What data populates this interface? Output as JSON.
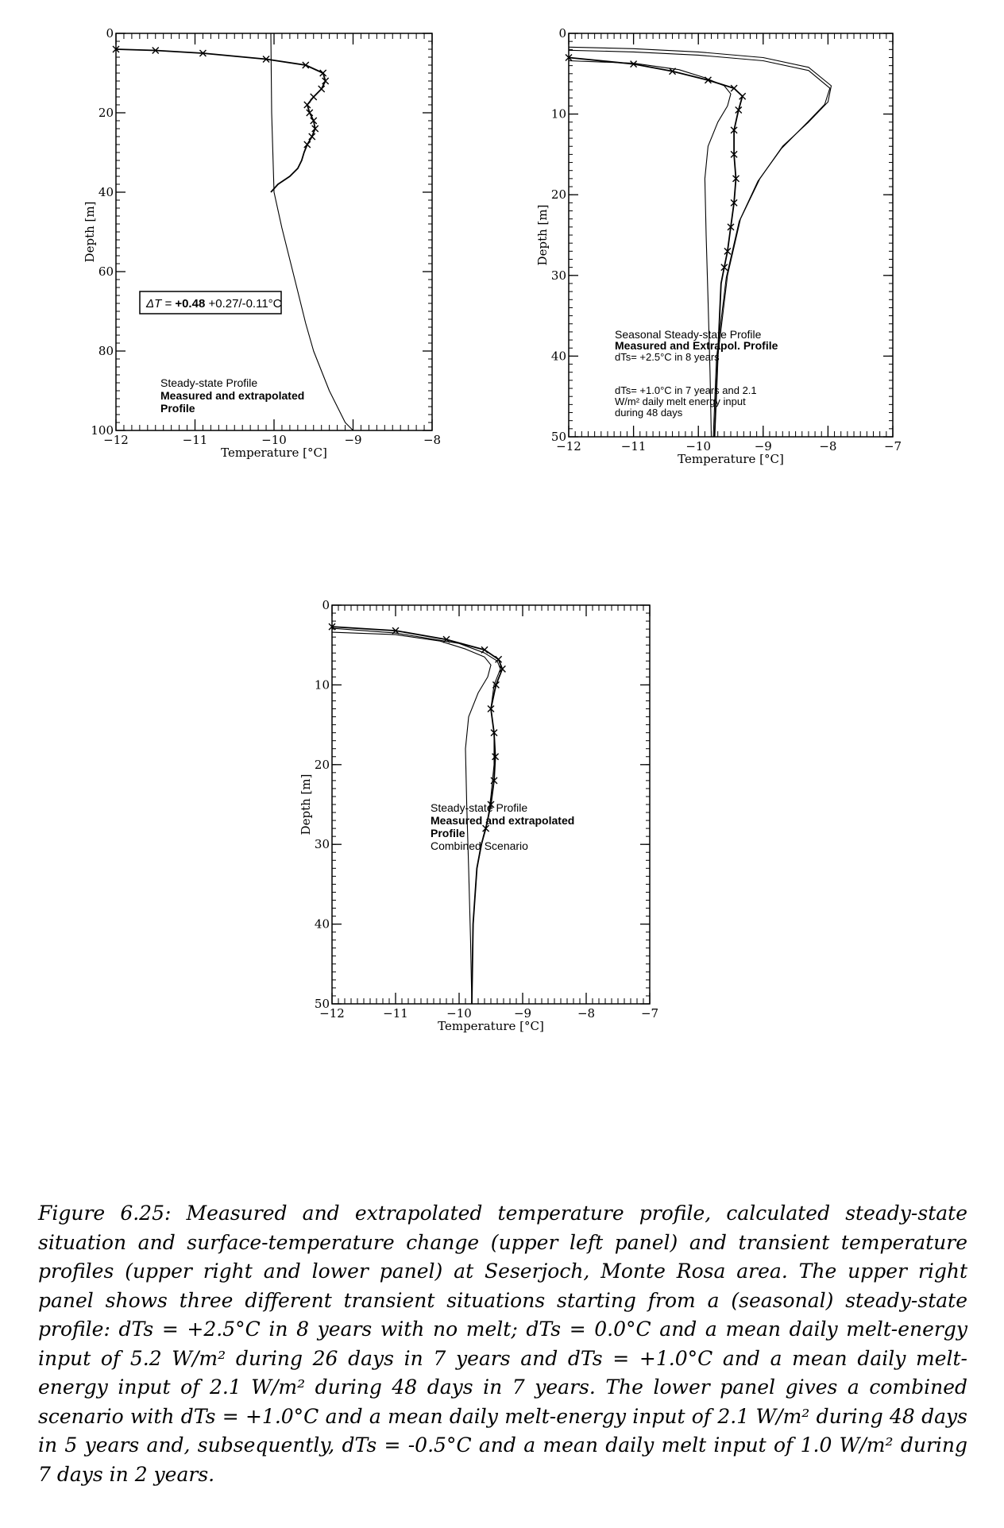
{
  "chart_data": [
    {
      "type": "line",
      "xlabel": "Temperature [°C]",
      "ylabel": "Depth [m]",
      "xlim": [
        -12,
        -8
      ],
      "ylim": [
        100,
        0
      ],
      "xticks": [
        -12,
        -11,
        -10,
        -9,
        -8
      ],
      "yticks": [
        0,
        20,
        40,
        60,
        80,
        100
      ],
      "annotation": {
        "prefix": "ΔT = ",
        "value": "+0.48",
        "rest": " +0.27/-0.11°C"
      },
      "legend": [
        "Steady-state Profile",
        "Measured and extrapolated",
        "Profile"
      ],
      "legend_placement": "bottom-left",
      "series": [
        {
          "style": "thin",
          "x": [
            -10.04,
            -10.03,
            -10.0,
            -9.9,
            -9.8,
            -9.7,
            -9.6,
            -9.5,
            -9.4,
            -9.3,
            -9.2,
            -9.1,
            -9.0
          ],
          "y": [
            0,
            20,
            40,
            49,
            57,
            65,
            73,
            80,
            85,
            90,
            94,
            98,
            100
          ]
        },
        {
          "style": "marked",
          "x": [
            -12.0,
            -11.5,
            -10.9,
            -10.1,
            -9.6,
            -9.38,
            -9.35,
            -9.4,
            -9.5,
            -9.58,
            -9.55,
            -9.5,
            -9.48,
            -9.52,
            -9.58,
            -9.62,
            -9.65,
            -9.7,
            -9.8,
            -9.95,
            -10.04
          ],
          "y": [
            4,
            4.3,
            5,
            6.5,
            8,
            10,
            12,
            14,
            16,
            18,
            20,
            22,
            24,
            26,
            28,
            30,
            32,
            34,
            36,
            38,
            40
          ],
          "markers_end": 29
        }
      ]
    },
    {
      "type": "line",
      "xlabel": "Temperature [°C]",
      "ylabel": "Depth [m]",
      "xlim": [
        -12,
        -7
      ],
      "ylim": [
        50,
        0
      ],
      "xticks": [
        -12,
        -11,
        -10,
        -9,
        -8,
        -7
      ],
      "yticks": [
        0,
        10,
        20,
        30,
        40,
        50
      ],
      "legend": [
        "Seasonal Steady-state Profile",
        "Measured and Extrapol. Profile",
        "dTs= +2.5°C in 8 years",
        "dTs= +1.0°C in 7 years and 2.1",
        "W/m² daily melt energy input",
        "during 48 days"
      ],
      "legend_placement": "bottom-right",
      "series": [
        {
          "style": "thin",
          "x": [
            -12.0,
            -11.0,
            -10.3,
            -9.9,
            -9.6,
            -9.5,
            -9.55,
            -9.7,
            -9.85,
            -9.9,
            -9.88,
            -9.85,
            -9.82,
            -9.8
          ],
          "y": [
            3.4,
            3.7,
            4.5,
            5.5,
            6.5,
            7.5,
            9.0,
            11.0,
            14.0,
            18.0,
            25.0,
            33.0,
            42.0,
            50.0
          ]
        },
        {
          "style": "thin",
          "x": [
            -12.0,
            -11.0,
            -10.0,
            -9.0,
            -8.3,
            -7.95,
            -8.0,
            -8.3,
            -8.7,
            -9.05,
            -9.35,
            -9.55,
            -9.7,
            -9.75
          ],
          "y": [
            1.7,
            1.9,
            2.3,
            3.0,
            4.2,
            6.5,
            8.5,
            11.0,
            14.0,
            18.0,
            23.0,
            30.0,
            40.0,
            50.0
          ]
        },
        {
          "style": "thin",
          "x": [
            -12.0,
            -11.0,
            -10.0,
            -9.0,
            -8.3,
            -7.97,
            -8.05,
            -8.35,
            -8.72,
            -9.08,
            -9.37,
            -9.57,
            -9.72,
            -9.77
          ],
          "y": [
            2.1,
            2.3,
            2.7,
            3.4,
            4.6,
            6.8,
            8.8,
            11.3,
            14.3,
            18.3,
            23.3,
            30.3,
            40.3,
            50.0
          ]
        },
        {
          "style": "marked",
          "x": [
            -12.0,
            -11.0,
            -10.4,
            -9.85,
            -9.45,
            -9.32,
            -9.38,
            -9.45,
            -9.45,
            -9.42,
            -9.45,
            -9.5,
            -9.55,
            -9.6,
            -9.65,
            -9.7,
            -9.75
          ],
          "y": [
            3.0,
            3.8,
            4.7,
            5.8,
            6.8,
            7.8,
            9.5,
            12.0,
            15.0,
            18.0,
            21.0,
            24.0,
            27.0,
            29.0,
            31.0,
            40.0,
            50.0
          ],
          "markers_end": 29.5
        }
      ]
    },
    {
      "type": "line",
      "xlabel": "Temperature [°C]",
      "ylabel": "Depth [m]",
      "xlim": [
        -12,
        -7
      ],
      "ylim": [
        50,
        0
      ],
      "xticks": [
        -12,
        -11,
        -10,
        -9,
        -8,
        -7
      ],
      "yticks": [
        0,
        10,
        20,
        30,
        40,
        50
      ],
      "legend": [
        "Steady-state Profile",
        "Measured and extrapolated",
        "Profile",
        "Combined Scenario"
      ],
      "legend_placement": "bottom-right",
      "series": [
        {
          "style": "thin",
          "x": [
            -12.0,
            -11.0,
            -10.3,
            -9.9,
            -9.6,
            -9.5,
            -9.55,
            -9.7,
            -9.85,
            -9.9,
            -9.88,
            -9.85,
            -9.82,
            -9.8
          ],
          "y": [
            3.4,
            3.7,
            4.5,
            5.5,
            6.5,
            7.5,
            9.0,
            11.0,
            14.0,
            18.0,
            25.0,
            33.0,
            42.0,
            50.0
          ]
        },
        {
          "style": "thin",
          "x": [
            -12.0,
            -11.0,
            -10.0,
            -9.6,
            -9.4,
            -9.35,
            -9.45,
            -9.5,
            -9.45,
            -9.45,
            -9.5,
            -9.55,
            -9.62,
            -9.72,
            -9.78,
            -9.8
          ],
          "y": [
            2.9,
            3.5,
            4.8,
            6.0,
            7.0,
            8.0,
            10.0,
            13.0,
            16.0,
            20.0,
            24.0,
            27.0,
            29.0,
            33.0,
            40.0,
            50.0
          ]
        },
        {
          "style": "marked",
          "x": [
            -12.0,
            -11.0,
            -10.2,
            -9.6,
            -9.38,
            -9.32,
            -9.42,
            -9.5,
            -9.45,
            -9.43,
            -9.45,
            -9.5,
            -9.58,
            -9.65,
            -9.72,
            -9.78,
            -9.8
          ],
          "y": [
            2.7,
            3.2,
            4.3,
            5.6,
            6.8,
            8.0,
            10.0,
            13.0,
            16.0,
            19.0,
            22.0,
            25.0,
            28.0,
            30.0,
            33.0,
            40.0,
            50.0
          ],
          "markers_end": 29
        }
      ]
    }
  ],
  "caption": "Figure 6.25: Measured and extrapolated temperature profile, calculated steady-state situation and surface-temperature change (upper left panel) and transient temperature profiles (upper right and lower panel) at Seserjoch, Monte Rosa area. The upper right panel shows three different transient situations starting from a (seasonal) steady-state profile: dTs = +2.5°C in 8 years with no melt; dTs = 0.0°C and a mean daily melt-energy input of 5.2 W/m² during 26 days in 7 years and dTs = +1.0°C and a mean daily melt-energy input of 2.1 W/m² during 48 days in 7 years. The lower panel gives a combined scenario with dTs = +1.0°C and a mean daily melt-energy input of 2.1 W/m² during 48 days in 5 years and, subsequently, dTs = -0.5°C and a mean daily melt input of 1.0 W/m² during 7 days in 2 years."
}
